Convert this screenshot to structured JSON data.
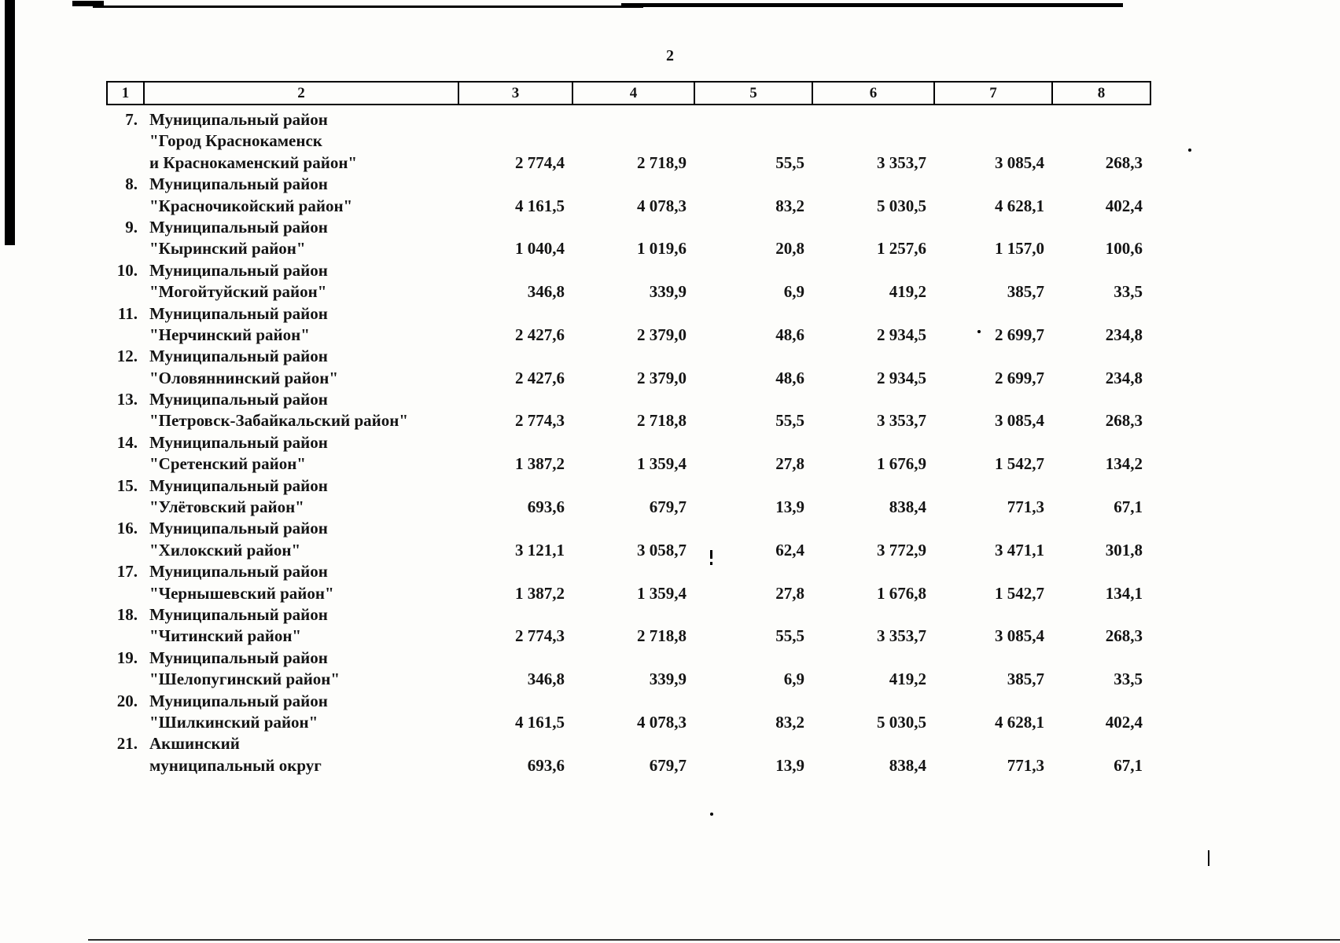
{
  "page": {
    "number": "2"
  },
  "table": {
    "header": [
      "1",
      "2",
      "3",
      "4",
      "5",
      "6",
      "7",
      "8"
    ],
    "rows": [
      {
        "num": "7.",
        "name_lines": [
          "Муниципальный район",
          "\"Город Краснокаменск",
          "и Краснокаменский район\""
        ],
        "values": [
          "2 774,4",
          "2 718,9",
          "55,5",
          "3 353,7",
          "3 085,4",
          "268,3"
        ]
      },
      {
        "num": "8.",
        "name_lines": [
          "Муниципальный район",
          "\"Красночикойский район\""
        ],
        "values": [
          "4 161,5",
          "4 078,3",
          "83,2",
          "5 030,5",
          "4 628,1",
          "402,4"
        ]
      },
      {
        "num": "9.",
        "name_lines": [
          "Муниципальный район",
          "\"Кыринский район\""
        ],
        "values": [
          "1 040,4",
          "1 019,6",
          "20,8",
          "1 257,6",
          "1 157,0",
          "100,6"
        ]
      },
      {
        "num": "10.",
        "name_lines": [
          "Муниципальный район",
          "\"Могойтуйский район\""
        ],
        "values": [
          "346,8",
          "339,9",
          "6,9",
          "419,2",
          "385,7",
          "33,5"
        ]
      },
      {
        "num": "11.",
        "name_lines": [
          "Муниципальный район",
          "\"Нерчинский район\""
        ],
        "values": [
          "2 427,6",
          "2 379,0",
          "48,6",
          "2 934,5",
          "2 699,7",
          "234,8"
        ]
      },
      {
        "num": "12.",
        "name_lines": [
          "Муниципальный район",
          "\"Оловяннинский район\""
        ],
        "values": [
          "2 427,6",
          "2 379,0",
          "48,6",
          "2 934,5",
          "2 699,7",
          "234,8"
        ]
      },
      {
        "num": "13.",
        "name_lines": [
          "Муниципальный район",
          "\"Петровск-Забайкальский район\""
        ],
        "values": [
          "2 774,3",
          "2 718,8",
          "55,5",
          "3 353,7",
          "3 085,4",
          "268,3"
        ]
      },
      {
        "num": "14.",
        "name_lines": [
          "Муниципальный район",
          "\"Сретенский район\""
        ],
        "values": [
          "1 387,2",
          "1 359,4",
          "27,8",
          "1 676,9",
          "1 542,7",
          "134,2"
        ]
      },
      {
        "num": "15.",
        "name_lines": [
          "Муниципальный район",
          "\"Улётовский район\""
        ],
        "values": [
          "693,6",
          "679,7",
          "13,9",
          "838,4",
          "771,3",
          "67,1"
        ]
      },
      {
        "num": "16.",
        "name_lines": [
          "Муниципальный район",
          "\"Хилокский район\""
        ],
        "values": [
          "3 121,1",
          "3 058,7",
          "62,4",
          "3 772,9",
          "3 471,1",
          "301,8"
        ]
      },
      {
        "num": "17.",
        "name_lines": [
          "Муниципальный район",
          "\"Чернышевский район\""
        ],
        "values": [
          "1 387,2",
          "1 359,4",
          "27,8",
          "1 676,8",
          "1 542,7",
          "134,1"
        ]
      },
      {
        "num": "18.",
        "name_lines": [
          "Муниципальный район",
          "\"Читинский район\""
        ],
        "values": [
          "2 774,3",
          "2 718,8",
          "55,5",
          "3 353,7",
          "3 085,4",
          "268,3"
        ]
      },
      {
        "num": "19.",
        "name_lines": [
          "Муниципальный район",
          "\"Шелопугинский район\""
        ],
        "values": [
          "346,8",
          "339,9",
          "6,9",
          "419,2",
          "385,7",
          "33,5"
        ]
      },
      {
        "num": "20.",
        "name_lines": [
          "Муниципальный район",
          "\"Шилкинский район\""
        ],
        "values": [
          "4 161,5",
          "4 078,3",
          "83,2",
          "5 030,5",
          "4 628,1",
          "402,4"
        ]
      },
      {
        "num": "21.",
        "name_lines": [
          "Акшинский",
          "муниципальный округ"
        ],
        "values": [
          "693,6",
          "679,7",
          "13,9",
          "838,4",
          "771,3",
          "67,1"
        ]
      }
    ]
  }
}
